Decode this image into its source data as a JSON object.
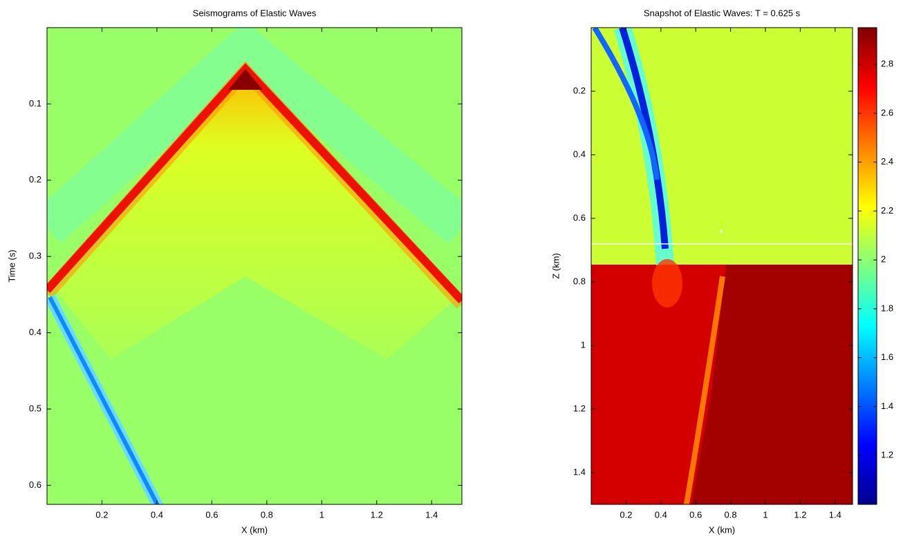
{
  "chart_data": [
    {
      "type": "heatmap",
      "title": "Seismograms of Elastic Waves",
      "xlabel": "X (km)",
      "ylabel": "Time (s)",
      "xlim": [
        0,
        1.51
      ],
      "xticks": [
        0.2,
        0.4,
        0.6,
        0.8,
        1,
        1.2,
        1.4
      ],
      "ylim": [
        0,
        0.625
      ],
      "yticks": [
        0.1,
        0.2,
        0.3,
        0.4,
        0.5,
        0.6
      ],
      "y_reversed": true,
      "colormap": "jet"
    },
    {
      "type": "heatmap",
      "title": "Snapshot of Elastic Waves: T = 0.625 s",
      "xlabel": "X (km)",
      "ylabel": "Z (km)",
      "xlim": [
        0,
        1.5
      ],
      "xticks": [
        0.2,
        0.4,
        0.6,
        0.8,
        1,
        1.2,
        1.4
      ],
      "ylim": [
        0,
        1.5
      ],
      "yticks": [
        0.2,
        0.4,
        0.6,
        0.8,
        1,
        1.2,
        1.4
      ],
      "y_reversed": true,
      "colormap": "jet",
      "clim": [
        1,
        2.95
      ],
      "cticks": [
        1.2,
        1.4,
        1.6,
        1.8,
        2,
        2.2,
        2.4,
        2.6,
        2.8
      ]
    }
  ]
}
